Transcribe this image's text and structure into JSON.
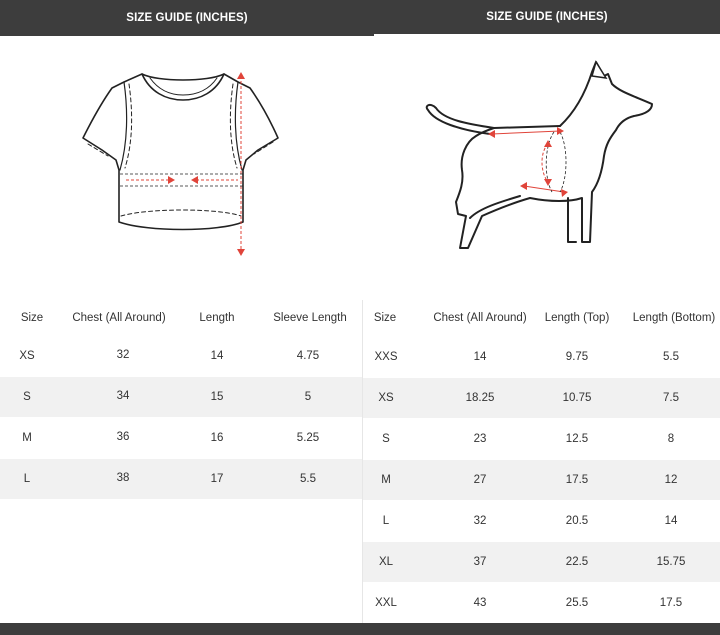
{
  "left_panel": {
    "header": "SIZE GUIDE (INCHES)",
    "columns": [
      "Size",
      "Chest (All Around)",
      "Length",
      "Sleeve Length"
    ],
    "rows": [
      [
        "XS",
        "32",
        "14",
        "4.75"
      ],
      [
        "S",
        "34",
        "15",
        "5"
      ],
      [
        "M",
        "36",
        "16",
        "5.25"
      ],
      [
        "L",
        "38",
        "17",
        "5.5"
      ]
    ]
  },
  "right_panel": {
    "header": "SIZE GUIDE (INCHES)",
    "columns": [
      "Size",
      "Chest (All Around)",
      "Length (Top)",
      "Length (Bottom)"
    ],
    "rows": [
      [
        "XXS",
        "14",
        "9.75",
        "5.5"
      ],
      [
        "XS",
        "18.25",
        "10.75",
        "7.5"
      ],
      [
        "S",
        "23",
        "12.5",
        "8"
      ],
      [
        "M",
        "27",
        "17.5",
        "12"
      ],
      [
        "L",
        "32",
        "20.5",
        "14"
      ],
      [
        "XL",
        "37",
        "22.5",
        "15.75"
      ],
      [
        "XXL",
        "43",
        "25.5",
        "17.5"
      ]
    ]
  },
  "colors": {
    "header_bg": "#3d3d3d",
    "shade_row": "#f1f1f1",
    "measure_arrow": "#e0443a"
  },
  "icons": {
    "shirt": "tshirt-measure-icon",
    "dog": "dog-measure-icon"
  }
}
